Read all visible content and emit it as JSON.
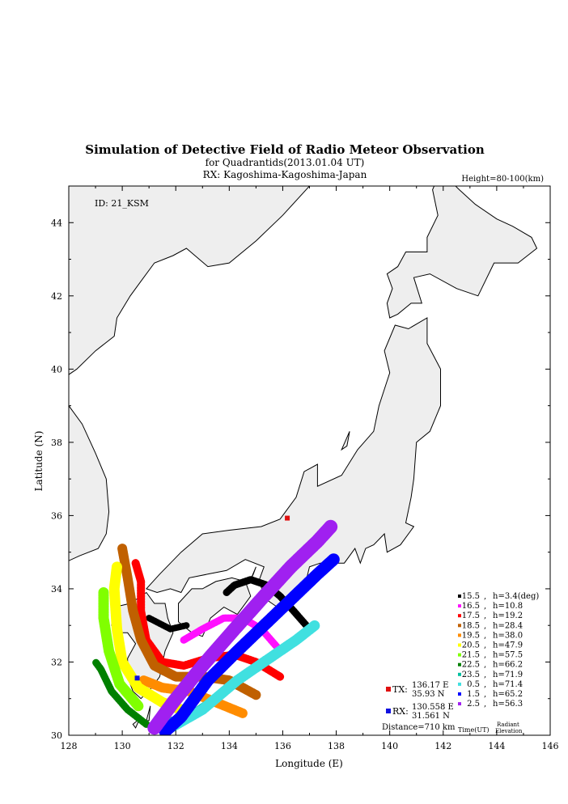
{
  "titles": {
    "title": "Simulation of Detective Field of Radio Meteor Observation",
    "subtitle": "for Quadrantids(2013.01.04 UT)",
    "rx_line": "RX: Kagoshima-Kagoshima-Japan",
    "height": "Height=80-100(km)",
    "id": "ID: 21_KSM"
  },
  "axes": {
    "xlabel": "Longitude (E)",
    "ylabel": "Latitude (N)",
    "xlim": [
      128,
      146
    ],
    "ylim": [
      30,
      45
    ],
    "xticks": [
      "128",
      "130",
      "132",
      "134",
      "136",
      "138",
      "140",
      "142",
      "144",
      "146"
    ],
    "yticks": [
      "30",
      "32",
      "34",
      "36",
      "38",
      "40",
      "42",
      "44"
    ]
  },
  "stations": {
    "tx_label": "TX:",
    "tx_lon": "136.17 E",
    "tx_lat": "35.93 N",
    "tx_color": "#e01010",
    "rx_label": "RX:",
    "rx_lon": "130.558 E",
    "rx_lat": "31.561 N",
    "rx_color": "#1010e0",
    "distance": "Distance=710 km"
  },
  "legend": {
    "time_header": "Time(UT)",
    "elev_header_1": "Radiant",
    "elev_header_2": "Elevation",
    "items": [
      {
        "time": "15.5",
        "elev": "h=3.4(deg)",
        "color": "#000000"
      },
      {
        "time": "16.5",
        "elev": "h=10.8",
        "color": "#ff10ff"
      },
      {
        "time": "17.5",
        "elev": "h=19.2",
        "color": "#ff0000"
      },
      {
        "time": "18.5",
        "elev": "h=28.4",
        "color": "#c06000"
      },
      {
        "time": "19.5",
        "elev": "h=38.0",
        "color": "#ff8c00"
      },
      {
        "time": "20.5",
        "elev": "h=47.9",
        "color": "#ffff00"
      },
      {
        "time": "21.5",
        "elev": "h=57.5",
        "color": "#80ff00"
      },
      {
        "time": "22.5",
        "elev": "h=66.2",
        "color": "#008000"
      },
      {
        "time": "23.5",
        "elev": "h=71.9",
        "color": "#00c0a0"
      },
      {
        "time": "0.5",
        "elev": "h=71.4",
        "color": "#40e0e0"
      },
      {
        "time": "1.5",
        "elev": "h=65.2",
        "color": "#0000ff"
      },
      {
        "time": "2.5",
        "elev": "h=56.3",
        "color": "#a020f0"
      }
    ]
  },
  "chart_data": {
    "type": "scatter",
    "xlim": [
      128,
      146
    ],
    "ylim": [
      30,
      45
    ],
    "tx": [
      136.17,
      35.93
    ],
    "rx": [
      130.558,
      31.561
    ],
    "bands": [
      {
        "time": "15.5",
        "color": "#000000",
        "pts": [
          [
            137.0,
            32.9
          ],
          [
            136.4,
            33.4
          ],
          [
            135.9,
            33.8
          ],
          [
            135.4,
            34.1
          ],
          [
            134.8,
            34.25
          ],
          [
            134.2,
            34.1
          ],
          [
            133.9,
            33.9
          ]
        ],
        "w": 9
      },
      {
        "time": "15.5b",
        "color": "#000000",
        "pts": [
          [
            131.0,
            33.2
          ],
          [
            131.8,
            32.9
          ],
          [
            132.4,
            33.0
          ]
        ],
        "w": 8
      },
      {
        "time": "16.5",
        "color": "#ff10ff",
        "pts": [
          [
            135.8,
            32.4
          ],
          [
            135.2,
            32.9
          ],
          [
            134.5,
            33.2
          ],
          [
            133.8,
            33.2
          ],
          [
            133.0,
            32.9
          ],
          [
            132.3,
            32.6
          ]
        ],
        "w": 9
      },
      {
        "time": "17.5",
        "color": "#ff0000",
        "pts": [
          [
            135.9,
            31.6
          ],
          [
            135.0,
            32.0
          ],
          [
            134.2,
            32.2
          ],
          [
            133.2,
            32.1
          ],
          [
            132.3,
            31.9
          ],
          [
            131.5,
            32.0
          ],
          [
            130.9,
            32.6
          ],
          [
            130.7,
            33.4
          ],
          [
            130.7,
            34.2
          ],
          [
            130.5,
            34.7
          ]
        ],
        "w": 10
      },
      {
        "time": "18.5",
        "color": "#c06000",
        "pts": [
          [
            135.0,
            31.1
          ],
          [
            134.0,
            31.5
          ],
          [
            133.0,
            31.6
          ],
          [
            132.0,
            31.6
          ],
          [
            131.2,
            31.9
          ],
          [
            130.7,
            32.6
          ],
          [
            130.4,
            33.4
          ],
          [
            130.2,
            34.3
          ],
          [
            130.0,
            35.1
          ]
        ],
        "w": 12
      },
      {
        "time": "19.5",
        "color": "#ff8c00",
        "pts": [
          [
            134.5,
            30.6
          ],
          [
            133.5,
            30.9
          ],
          [
            132.5,
            31.2
          ],
          [
            131.5,
            31.3
          ],
          [
            130.8,
            31.5
          ]
        ],
        "w": 12
      },
      {
        "time": "20.5",
        "color": "#ffff00",
        "pts": [
          [
            132.2,
            30.7
          ],
          [
            131.5,
            30.9
          ],
          [
            130.6,
            31.3
          ],
          [
            130.0,
            32.0
          ],
          [
            129.8,
            32.9
          ],
          [
            129.7,
            34.0
          ],
          [
            129.8,
            34.6
          ]
        ],
        "w": 13
      },
      {
        "time": "21.5",
        "color": "#80ff00",
        "pts": [
          [
            130.6,
            30.8
          ],
          [
            129.9,
            31.4
          ],
          [
            129.5,
            32.3
          ],
          [
            129.3,
            33.2
          ],
          [
            129.3,
            33.9
          ]
        ],
        "w": 13
      },
      {
        "time": "22.5",
        "color": "#008000",
        "pts": [
          [
            130.9,
            30.3
          ],
          [
            130.2,
            30.7
          ],
          [
            129.6,
            31.2
          ],
          [
            129.2,
            31.8
          ],
          [
            129.0,
            32.0
          ]
        ],
        "w": 9
      },
      {
        "time": "23.5",
        "color": "#00c0a0",
        "pts": [
          [
            131.4,
            30.3
          ],
          [
            132.5,
            30.5
          ],
          [
            133.5,
            31.0
          ],
          [
            134.3,
            31.5
          ]
        ],
        "w": 11
      },
      {
        "time": "0.5",
        "color": "#40e0e0",
        "pts": [
          [
            131.8,
            30.2
          ],
          [
            133.0,
            30.7
          ],
          [
            134.3,
            31.5
          ],
          [
            135.5,
            32.1
          ],
          [
            136.5,
            32.6
          ],
          [
            137.2,
            33.0
          ]
        ],
        "w": 13
      },
      {
        "time": "1.5",
        "color": "#0000ff",
        "pts": [
          [
            131.6,
            30.1
          ],
          [
            132.2,
            30.5
          ],
          [
            133.2,
            31.5
          ],
          [
            134.3,
            32.3
          ],
          [
            135.3,
            33.0
          ],
          [
            136.3,
            33.7
          ],
          [
            137.3,
            34.4
          ],
          [
            137.9,
            34.8
          ]
        ],
        "w": 15
      },
      {
        "time": "2.5",
        "color": "#a020f0",
        "pts": [
          [
            131.2,
            30.2
          ],
          [
            131.9,
            30.9
          ],
          [
            133.0,
            31.9
          ],
          [
            134.2,
            32.9
          ],
          [
            135.3,
            33.8
          ],
          [
            136.3,
            34.6
          ],
          [
            137.3,
            35.3
          ],
          [
            137.8,
            35.7
          ]
        ],
        "w": 17
      }
    ]
  },
  "map": {
    "land_color": "#eeeeee",
    "coast_color": "#000000"
  }
}
